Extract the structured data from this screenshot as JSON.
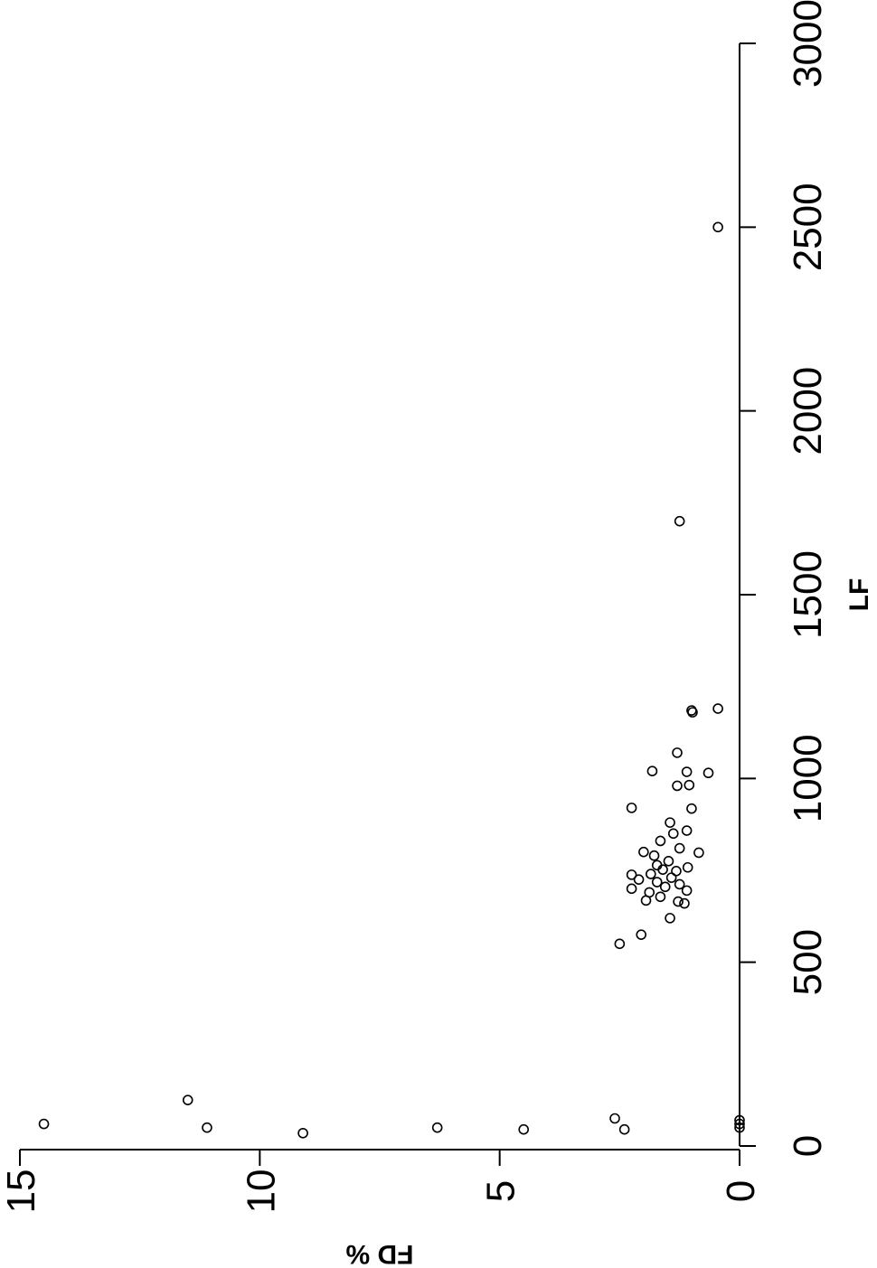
{
  "chart_data": {
    "type": "scatter",
    "title": "",
    "xlabel": "LF",
    "ylabel": "FD %",
    "xlim": [
      0,
      3000
    ],
    "ylim": [
      0,
      15
    ],
    "x_ticks": [
      "0",
      "500",
      "1000",
      "1500",
      "2000",
      "2500",
      "3000"
    ],
    "y_ticks": [
      "0",
      "5",
      "10",
      "15"
    ],
    "grid": false,
    "legend": "none",
    "marker_color": "#000000",
    "points": [
      {
        "x": 60,
        "y": 14.5
      },
      {
        "x": 125,
        "y": 11.5
      },
      {
        "x": 50,
        "y": 11.1
      },
      {
        "x": 35,
        "y": 9.1
      },
      {
        "x": 50,
        "y": 6.3
      },
      {
        "x": 45,
        "y": 4.5
      },
      {
        "x": 75,
        "y": 2.6
      },
      {
        "x": 45,
        "y": 2.4
      },
      {
        "x": 70,
        "y": 0.0
      },
      {
        "x": 60,
        "y": 0.0
      },
      {
        "x": 50,
        "y": 0.0
      },
      {
        "x": 550,
        "y": 2.5
      },
      {
        "x": 575,
        "y": 2.05
      },
      {
        "x": 620,
        "y": 1.45
      },
      {
        "x": 660,
        "y": 1.15
      },
      {
        "x": 665,
        "y": 1.28
      },
      {
        "x": 668,
        "y": 1.95
      },
      {
        "x": 678,
        "y": 1.65
      },
      {
        "x": 690,
        "y": 1.88
      },
      {
        "x": 695,
        "y": 1.1
      },
      {
        "x": 700,
        "y": 2.25
      },
      {
        "x": 705,
        "y": 1.55
      },
      {
        "x": 712,
        "y": 1.25
      },
      {
        "x": 718,
        "y": 1.72
      },
      {
        "x": 725,
        "y": 2.1
      },
      {
        "x": 730,
        "y": 1.42
      },
      {
        "x": 738,
        "y": 2.25
      },
      {
        "x": 740,
        "y": 1.85
      },
      {
        "x": 748,
        "y": 1.32
      },
      {
        "x": 752,
        "y": 1.6
      },
      {
        "x": 758,
        "y": 1.08
      },
      {
        "x": 764,
        "y": 1.72
      },
      {
        "x": 775,
        "y": 1.48
      },
      {
        "x": 790,
        "y": 1.78
      },
      {
        "x": 798,
        "y": 0.85
      },
      {
        "x": 800,
        "y": 2.0
      },
      {
        "x": 810,
        "y": 1.25
      },
      {
        "x": 830,
        "y": 1.65
      },
      {
        "x": 850,
        "y": 1.38
      },
      {
        "x": 858,
        "y": 1.1
      },
      {
        "x": 880,
        "y": 1.45
      },
      {
        "x": 918,
        "y": 1.0
      },
      {
        "x": 920,
        "y": 2.25
      },
      {
        "x": 980,
        "y": 1.3
      },
      {
        "x": 982,
        "y": 1.05
      },
      {
        "x": 1015,
        "y": 0.65
      },
      {
        "x": 1018,
        "y": 1.1
      },
      {
        "x": 1020,
        "y": 1.82
      },
      {
        "x": 1070,
        "y": 1.3
      },
      {
        "x": 1180,
        "y": 0.98
      },
      {
        "x": 1185,
        "y": 1.0
      },
      {
        "x": 1190,
        "y": 0.45
      },
      {
        "x": 1700,
        "y": 1.25
      },
      {
        "x": 2500,
        "y": 0.45
      }
    ]
  }
}
